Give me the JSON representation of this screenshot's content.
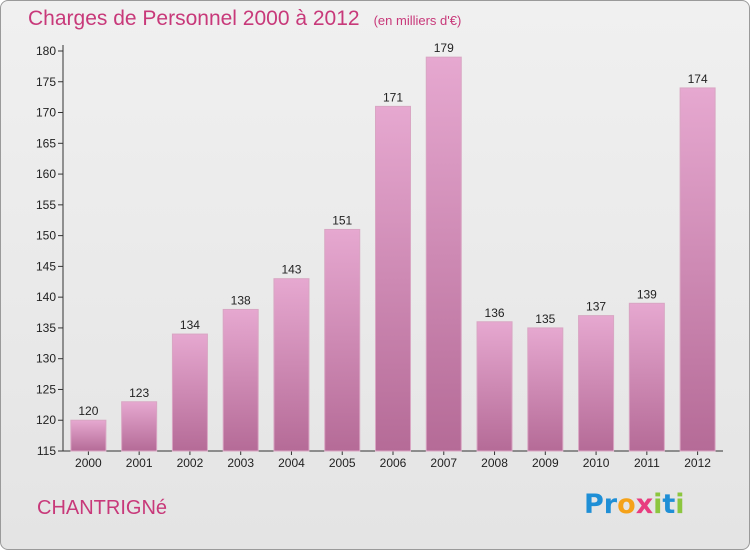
{
  "header": {
    "title": "Charges de Personnel 2000 à 2012",
    "subtitle": "(en milliers d'€)"
  },
  "footer": {
    "town": "CHANTRIGNé",
    "logo_letters": [
      {
        "char": "P",
        "color": "#1f8fd6"
      },
      {
        "char": "r",
        "color": "#1f8fd6"
      },
      {
        "char": "o",
        "color": "#f5a219"
      },
      {
        "char": "x",
        "color": "#e83c7f"
      },
      {
        "char": "i",
        "color": "#8cc63f"
      },
      {
        "char": "t",
        "color": "#1f8fd6"
      },
      {
        "char": "i",
        "color": "#8cc63f"
      }
    ]
  },
  "colors": {
    "bar_light": "#e6a8d0",
    "bar_dark": "#b56b97",
    "accent": "#c8397a"
  },
  "chart_data": {
    "type": "bar",
    "title": "Charges de Personnel 2000 à 2012",
    "subtitle": "(en milliers d'€)",
    "categories": [
      "2000",
      "2001",
      "2002",
      "2003",
      "2004",
      "2005",
      "2006",
      "2007",
      "2008",
      "2009",
      "2010",
      "2011",
      "2012"
    ],
    "values": [
      120,
      123,
      134,
      138,
      143,
      151,
      171,
      179,
      136,
      135,
      137,
      139,
      174
    ],
    "ylim": [
      115,
      180
    ],
    "yticks": [
      115,
      120,
      125,
      130,
      135,
      140,
      145,
      150,
      155,
      160,
      165,
      170,
      175,
      180
    ],
    "grid": false,
    "legend": "none"
  }
}
